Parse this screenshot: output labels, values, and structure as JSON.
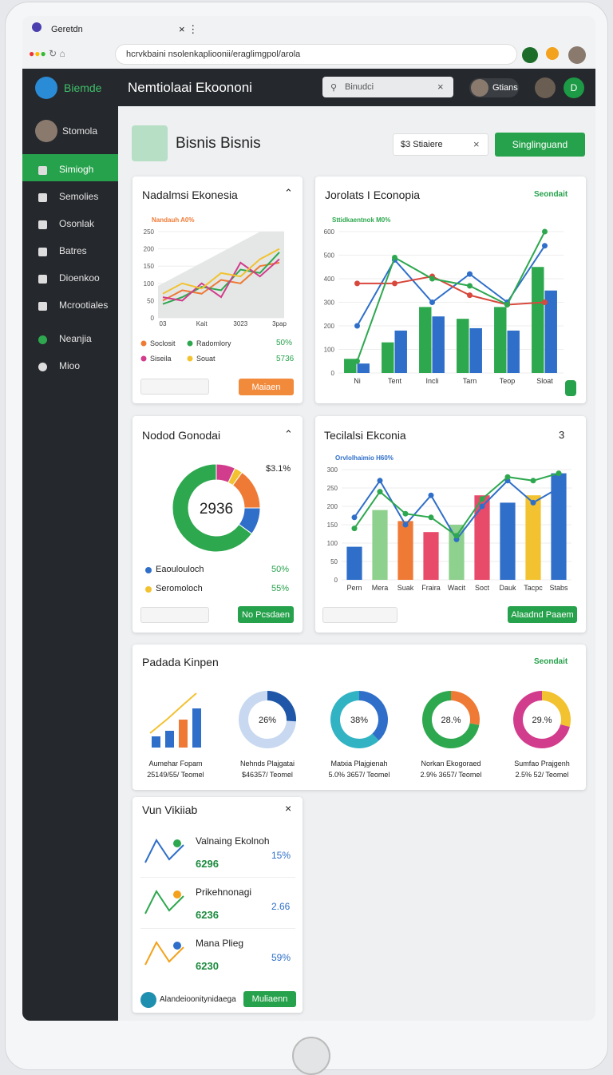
{
  "browser": {
    "tab": "Geretdn",
    "url": "hcrvkbaini nsolenkaplioonii/eraglimgpol/arola"
  },
  "app": {
    "brand": "Biemde",
    "title": "Nemtiolaai Ekoononi",
    "search": "Binudci",
    "user": "Gtians",
    "avatar": "D"
  },
  "sidebar": {
    "profile": "Stomola",
    "items": [
      "Simiogh",
      "Semolies",
      "Osonlak",
      "Batres",
      "Dioenkoo",
      "Mcrootiales",
      "Neanjia",
      "Mioo"
    ]
  },
  "header": {
    "title": "Bisnis Bisnis",
    "filter": "$3 Stiaiere",
    "button": "Singlinguand"
  },
  "card1": {
    "title": "Nadalmsi Ekonesia",
    "button": "Maiaen",
    "stats": [
      "50%",
      "5736"
    ],
    "chart": {
      "type": "line",
      "subtitle": "Nandauh A0%",
      "categories": [
        "03",
        null,
        "Kait",
        null,
        "3023",
        null,
        "3pap"
      ],
      "ylim": [
        0,
        250
      ],
      "yticks": [
        0,
        50,
        100,
        150,
        200,
        250
      ],
      "series": [
        {
          "name": "Soclosit",
          "color": "#ef7a35",
          "values": [
            50,
            80,
            70,
            110,
            100,
            150,
            160
          ]
        },
        {
          "name": "Radomlory",
          "color": "#2ea84f",
          "values": [
            40,
            60,
            90,
            80,
            140,
            130,
            190
          ]
        },
        {
          "name": "Siseila",
          "color": "#d23c8c",
          "values": [
            60,
            50,
            100,
            60,
            160,
            120,
            170
          ]
        },
        {
          "name": "Souat",
          "color": "#f2c230",
          "values": [
            70,
            100,
            85,
            130,
            120,
            170,
            200
          ]
        }
      ]
    }
  },
  "card2": {
    "title": "Jorolats I Econopia",
    "link": "Seondait",
    "chart": {
      "type": "bar",
      "subtitle": "Sttidkaentnok M0%",
      "categories": [
        "Ni",
        "Tent",
        "Incli",
        "Tarn",
        "Teop",
        "Sloat"
      ],
      "ylim": [
        0,
        600
      ],
      "yticks": [
        0,
        100,
        200,
        300,
        400,
        500,
        600
      ],
      "series": [
        {
          "color": "#2ea84f",
          "values": [
            60,
            130,
            280,
            230,
            280,
            450
          ]
        },
        {
          "color": "#2f6fc9",
          "values": [
            40,
            180,
            240,
            190,
            180,
            350
          ]
        }
      ],
      "lines": [
        {
          "color": "#2f6fc9",
          "values": [
            200,
            480,
            300,
            420,
            300,
            540
          ]
        },
        {
          "color": "#d8483c",
          "values": [
            380,
            380,
            410,
            330,
            290,
            300
          ]
        },
        {
          "color": "#2ea84f",
          "values": [
            50,
            490,
            400,
            370,
            290,
            600
          ]
        }
      ]
    }
  },
  "card3": {
    "title": "Nodod Gonodai",
    "corner": "$3.1%",
    "button": "No Pcsdaen",
    "legend": [
      {
        "name": "Eaoulouloch",
        "stat": "50%",
        "color": "#2f6fc9"
      },
      {
        "name": "Seromoloch",
        "stat": "55%",
        "color": "#f2c230"
      }
    ],
    "chart": {
      "type": "pie",
      "center_label": "2936",
      "values": [
        7,
        3,
        15,
        10,
        65
      ],
      "colors": [
        "#d23c8c",
        "#f2c230",
        "#ef7a35",
        "#2f6fc9",
        "#2ea84f"
      ]
    }
  },
  "card4": {
    "title": "Tecilalsi Ekconia",
    "corner": "3",
    "button": "Alaadnd Paaem",
    "chart": {
      "type": "bar",
      "subtitle": "Orvlolhaimio H60%",
      "categories": [
        "Pern",
        "Mera",
        "Suak",
        "Fraira",
        "Wacit",
        "Soct",
        "Dauk",
        "Tacpc",
        "Stabs"
      ],
      "ylim": [
        0,
        300
      ],
      "yticks": [
        0,
        50,
        100,
        150,
        200,
        250,
        300
      ],
      "values": [
        90,
        190,
        160,
        130,
        150,
        230,
        210,
        230,
        290
      ],
      "colors": [
        "#2f6fc9",
        "#8ed08e",
        "#ef7a35",
        "#e84a6a",
        "#8ed08e",
        "#e84a6a",
        "#2f6fc9",
        "#f2c230",
        "#2f6fc9"
      ],
      "lines": [
        {
          "color": "#2f6fc9",
          "values": [
            170,
            270,
            150,
            230,
            110,
            200,
            270,
            210,
            250
          ]
        },
        {
          "color": "#2ea84f",
          "values": [
            140,
            240,
            180,
            170,
            120,
            220,
            280,
            270,
            290
          ]
        }
      ]
    }
  },
  "card5": {
    "title": "Padada Kinpen",
    "link": "Seondait",
    "bars": {
      "values": [
        2,
        3,
        5,
        7
      ],
      "colors": [
        "#2f6fc9",
        "#2f6fc9",
        "#ef7a35",
        "#2f6fc9"
      ]
    },
    "items": [
      {
        "name": "Aumehar Fopam",
        "stat": "25149/55/ Teomel"
      },
      {
        "name": "Nehnds Plajgatai",
        "stat": "$46357/ Teomel",
        "value": 26,
        "value_label": "26%",
        "colors": [
          "#1f56a8",
          "#c7d8f0"
        ]
      },
      {
        "name": "Matxia Plajgienah",
        "stat": "5.0% 3657/ Teomel",
        "value": 38,
        "value_label": "38%",
        "colors": [
          "#2f6fc9",
          "#32b3c4"
        ]
      },
      {
        "name": "Norkan Ekogoraed",
        "stat": "2.9% 3657/ Teomel",
        "value": 28,
        "value_label": "28.%",
        "colors": [
          "#ef7a35",
          "#2ea84f"
        ]
      },
      {
        "name": "Sumfao Prajgenh",
        "stat": "2.5% 52/ Teomel",
        "value": 29,
        "value_label": "29.%",
        "colors": [
          "#f2c230",
          "#d23c8c"
        ]
      }
    ]
  },
  "card6": {
    "title": "Vun Vikiiab",
    "footer": "Alandeioonitynidaega",
    "button": "Muliaenn",
    "items": [
      {
        "name": "Valnaing Ekolnoh",
        "amount": "6296",
        "stat": "15%"
      },
      {
        "name": "Prikehnonagi",
        "amount": "6236",
        "stat": "2.66"
      },
      {
        "name": "Mana Plieg",
        "amount": "6230",
        "stat": "59%"
      }
    ]
  }
}
